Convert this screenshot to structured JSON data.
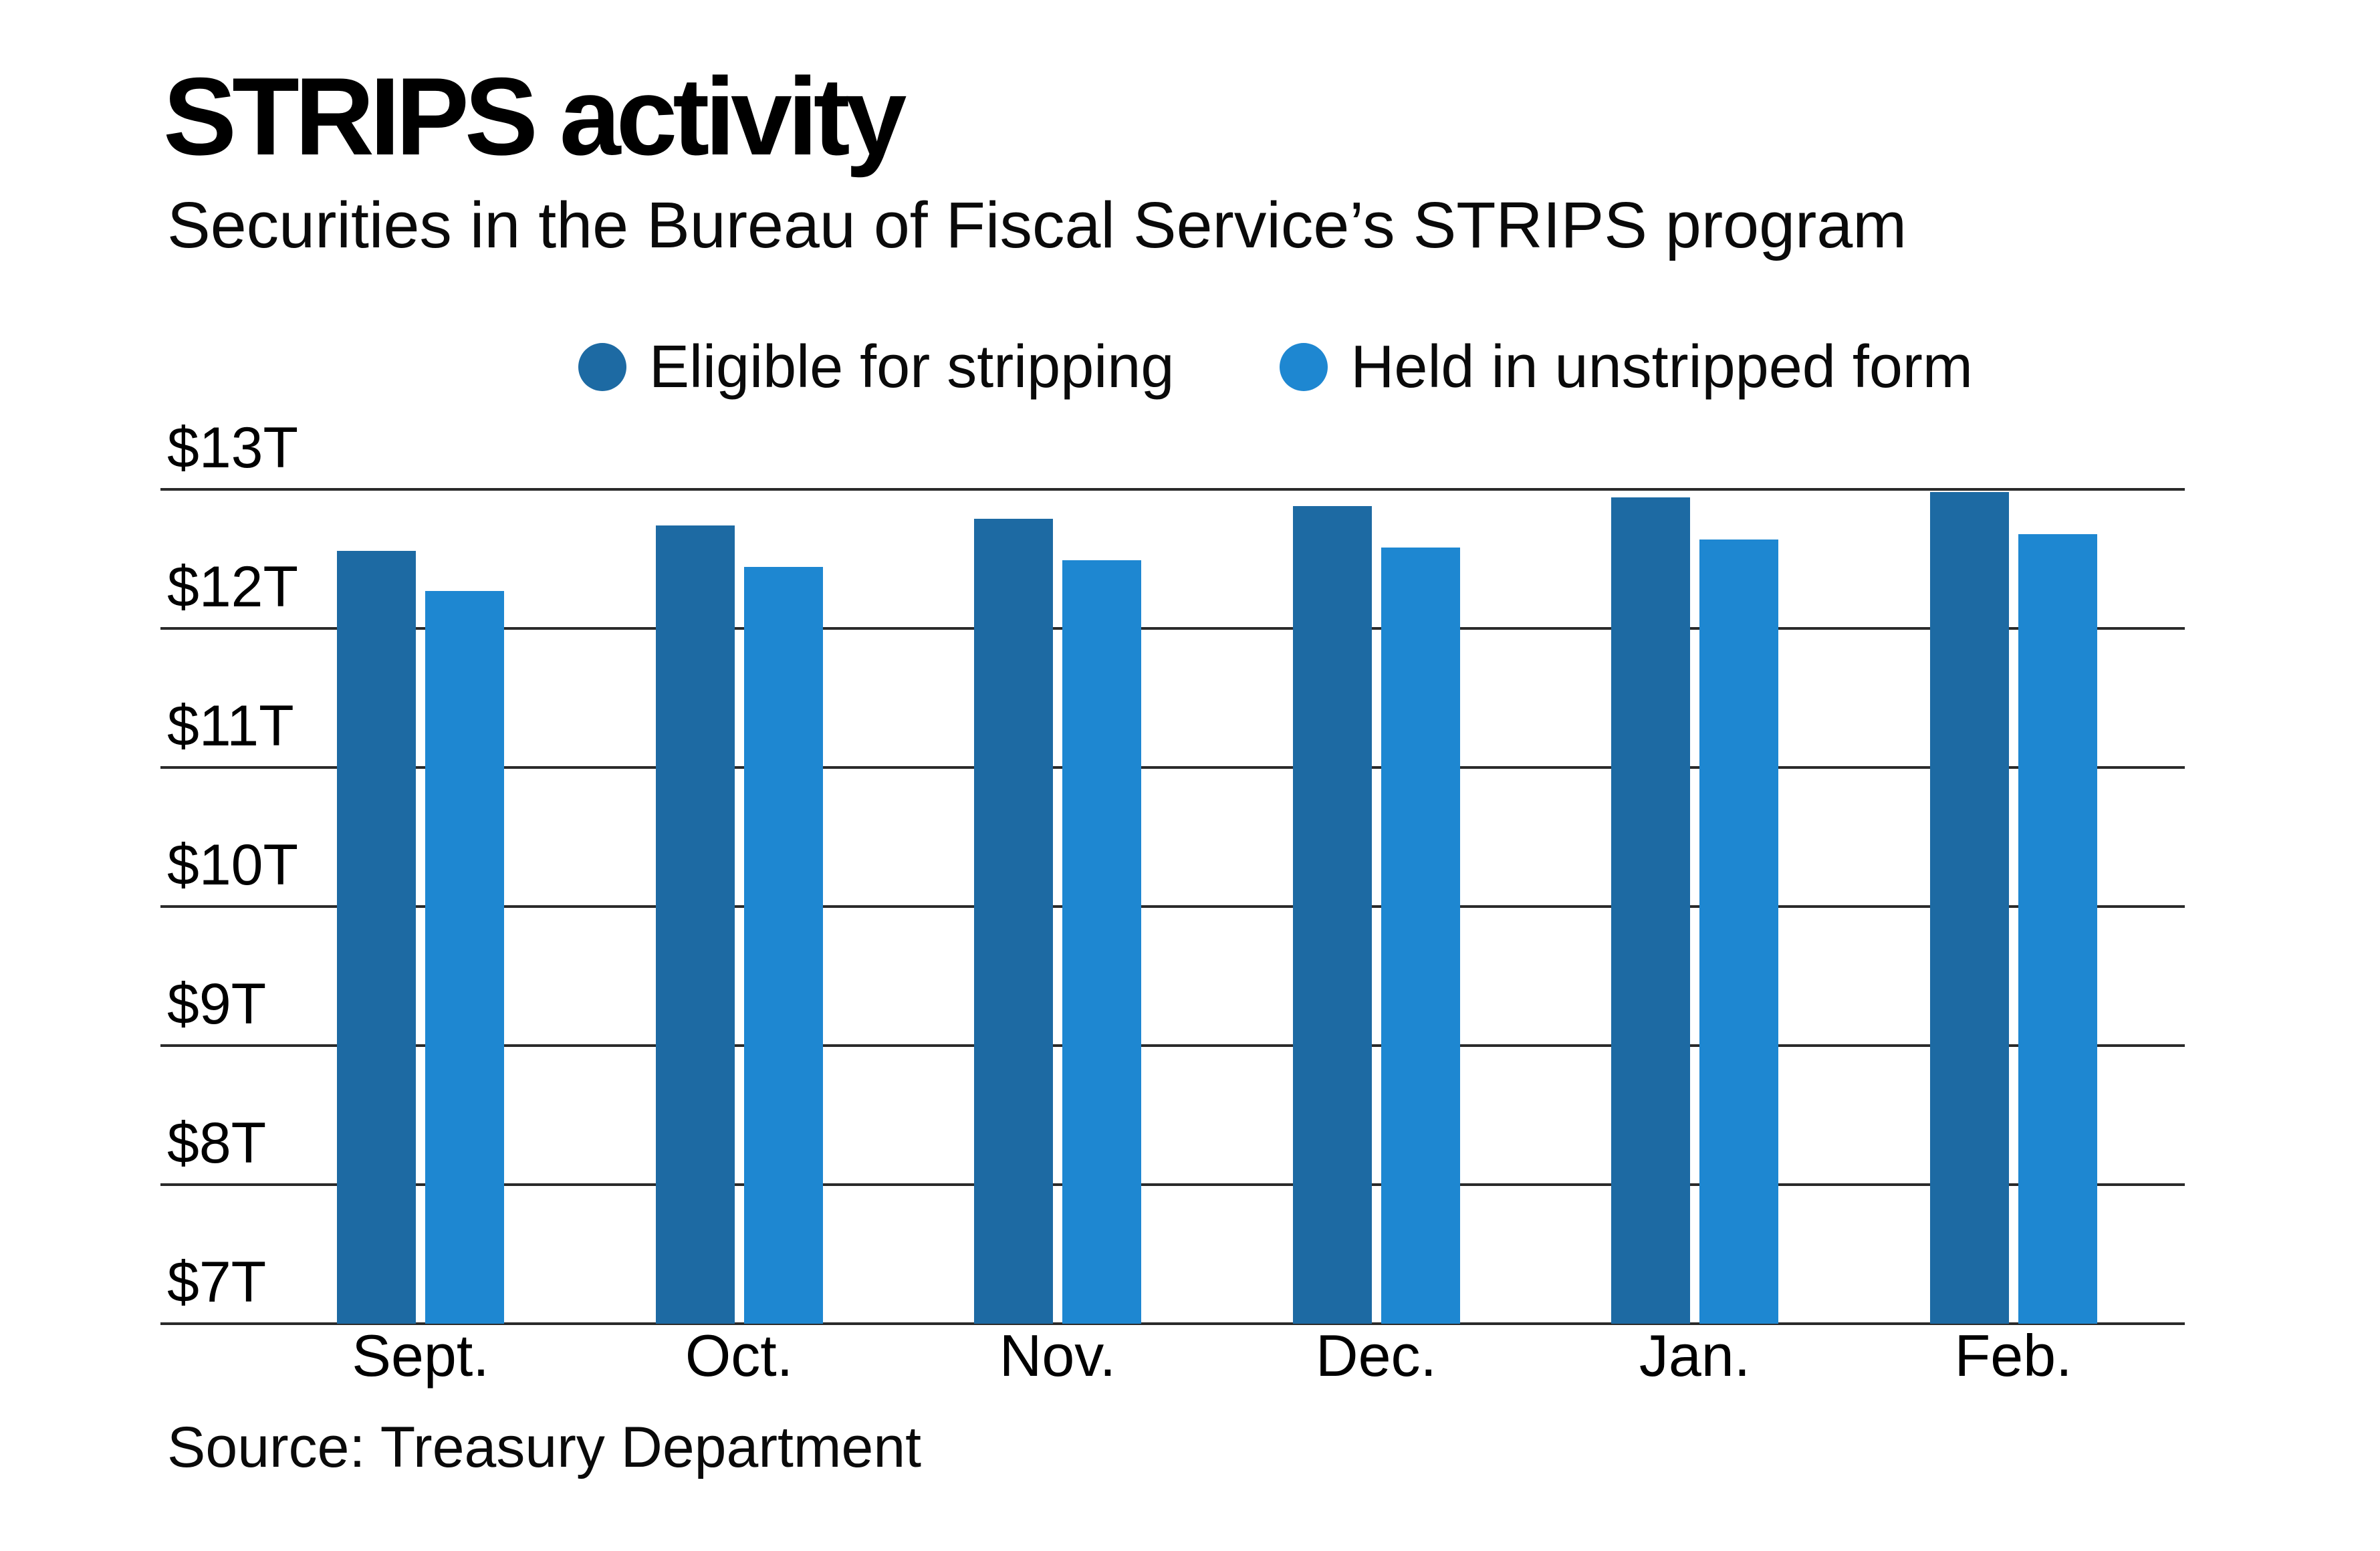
{
  "header": {
    "title": "STRIPS activity",
    "subtitle": "Securities in the Bureau of Fiscal Service’s STRIPS program"
  },
  "legend": [
    {
      "label": "Eligible for stripping",
      "color": "#1d6aa3"
    },
    {
      "label": "Held in unstripped form",
      "color": "#1e87d1"
    }
  ],
  "chart_data": {
    "type": "bar",
    "title": "STRIPS activity",
    "subtitle": "Securities in the Bureau of Fiscal Service’s STRIPS program",
    "categories": [
      "Sept.",
      "Oct.",
      "Nov.",
      "Dec.",
      "Jan.",
      "Feb."
    ],
    "series": [
      {
        "name": "Eligible for stripping",
        "color": "#1d6aa3",
        "values": [
          12.56,
          12.74,
          12.79,
          12.88,
          12.94,
          12.98
        ]
      },
      {
        "name": "Held in unstripped form",
        "color": "#1e87d1",
        "values": [
          12.27,
          12.44,
          12.49,
          12.58,
          12.64,
          12.68
        ]
      }
    ],
    "units": "trillions of dollars",
    "xlabel": "",
    "ylabel": "",
    "ylim": [
      7,
      13
    ],
    "yticks": [
      "$13T",
      "$12T",
      "$11T",
      "$10T",
      "$9T",
      "$8T",
      "$7T"
    ],
    "ytick_values": [
      13,
      12,
      11,
      10,
      9,
      8,
      7
    ],
    "grid": true,
    "legend_position": "top"
  },
  "footer": {
    "source": "Source: Treasury Department"
  }
}
